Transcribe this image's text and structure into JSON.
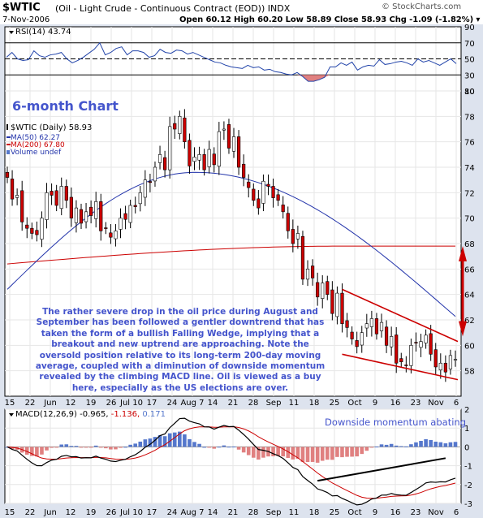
{
  "header": {
    "symbol": "$WTIC",
    "description": "(Oil - Light Crude - Continuous Contract (EOD)) INDX",
    "watermark": "© StockCharts.com",
    "date": "7-Nov-2006",
    "ohlc": "Open 60.12  High 60.20  Low 58.89  Close 58.93  Chg -1.09 (-1.82%) ▾"
  },
  "panel_title": "6-month Chart",
  "commentary": "The rather severe drop in the oil price during August and September has been followed a gentler downtrend that has taken the form of a bullish Falling Wedge, implying that a breakout and new uptrend are approaching. Note the oversold position relative to its long-term 200-day moving average, coupled with a diminution of downside momentum revealed by the climbing MACD line. Oil is viewed as a buy here, especially as the US elections are over.",
  "macd_note": "Downside momentum abating",
  "colors": {
    "up_candle": "#ffffff",
    "down_candle": "#cc0000",
    "ma50": "#2233aa",
    "ma200": "#cc0000",
    "rsi_line": "#2244aa",
    "rsi_oversold_fill": "#e08080",
    "macd_line": "#000000",
    "signal_line": "#cc0000",
    "hist_pos": "#5577cc",
    "hist_neg": "#e08080",
    "wedge": "#cc0000",
    "annotation": "#4454cc",
    "frame_bg": "#dde3ee"
  },
  "chart_data": {
    "type": "candlestick",
    "x_ticks": [
      "15",
      "22",
      "Jun",
      "12",
      "19",
      "26",
      "Jul 10",
      "17",
      "24",
      "Aug 7",
      "14",
      "21",
      "28",
      "Sep",
      "11",
      "18",
      "25",
      "Oct",
      "9",
      "16",
      "23",
      "Nov",
      "6"
    ],
    "rsi": {
      "legend": "RSI(14) 43.74",
      "ylim": [
        10,
        90
      ],
      "y_ticks": [
        90,
        70,
        50,
        30,
        10
      ],
      "values": [
        52,
        58,
        50,
        48,
        49,
        60,
        54,
        52,
        55,
        56,
        58,
        50,
        45,
        48,
        52,
        57,
        62,
        70,
        55,
        58,
        63,
        65,
        55,
        60,
        60,
        58,
        52,
        54,
        62,
        58,
        57,
        61,
        60,
        56,
        58,
        55,
        52,
        49,
        46,
        45,
        42,
        40,
        39,
        38,
        42,
        39,
        40,
        36,
        37,
        34,
        33,
        31,
        30,
        33,
        28,
        22,
        22,
        24,
        27,
        40,
        40,
        45,
        42,
        46,
        36,
        40,
        42,
        41,
        49,
        43,
        44,
        46,
        47,
        45,
        42,
        50,
        46,
        48,
        45,
        42,
        46,
        50,
        44
      ]
    },
    "price": {
      "legend": [
        "$WTIC (Daily) 58.93",
        "MA(50) 62.27",
        "MA(200) 67.80",
        "Volume undef"
      ],
      "ylim": [
        56,
        80
      ],
      "y_ticks": [
        80,
        78,
        76,
        74,
        72,
        70,
        68,
        66,
        64,
        62,
        60,
        58
      ],
      "close": [
        73.2,
        71.5,
        71.8,
        69.7,
        69.2,
        68.8,
        68.7,
        70.0,
        72.0,
        71.8,
        71.0,
        72.5,
        71.4,
        70.0,
        70.8,
        69.6,
        70.5,
        70.2,
        71.3,
        69.0,
        69.2,
        68.5,
        69.0,
        70.0,
        69.9,
        71.0,
        70.9,
        72.0,
        73.0,
        72.8,
        74.0,
        75.0,
        73.8,
        77.2,
        77.0,
        78.0,
        76.0,
        74.1,
        74.8,
        75.0,
        73.8,
        75.4,
        74.2,
        76.8,
        77.0,
        75.5,
        76.4,
        74.0,
        73.2,
        72.4,
        71.4,
        70.8,
        72.9,
        72.5,
        71.6,
        71.4,
        70.5,
        69.0,
        68.0,
        68.8,
        65.2,
        66.0,
        65.3,
        63.8,
        64.9,
        64.0,
        62.5,
        64.1,
        61.7,
        61.4,
        60.5,
        59.9,
        61.0,
        61.7,
        62.1,
        60.9,
        61.8,
        60.0,
        60.7,
        58.6,
        58.7,
        58.4,
        60.0,
        60.2,
        60.3,
        60.8,
        59.3,
        58.3,
        58.6,
        57.9,
        59.2,
        58.9
      ]
    },
    "ma50_range": [
      64.4,
      73.6,
      62.27
    ],
    "ma200_range": [
      66.4,
      67.8
    ],
    "macd": {
      "legend": "MACD(12,26,9) -0.965, -1.136, 0.171",
      "ylim": [
        -3,
        2
      ],
      "y_ticks": [
        2,
        1,
        0,
        -1,
        -2,
        -3
      ]
    }
  }
}
